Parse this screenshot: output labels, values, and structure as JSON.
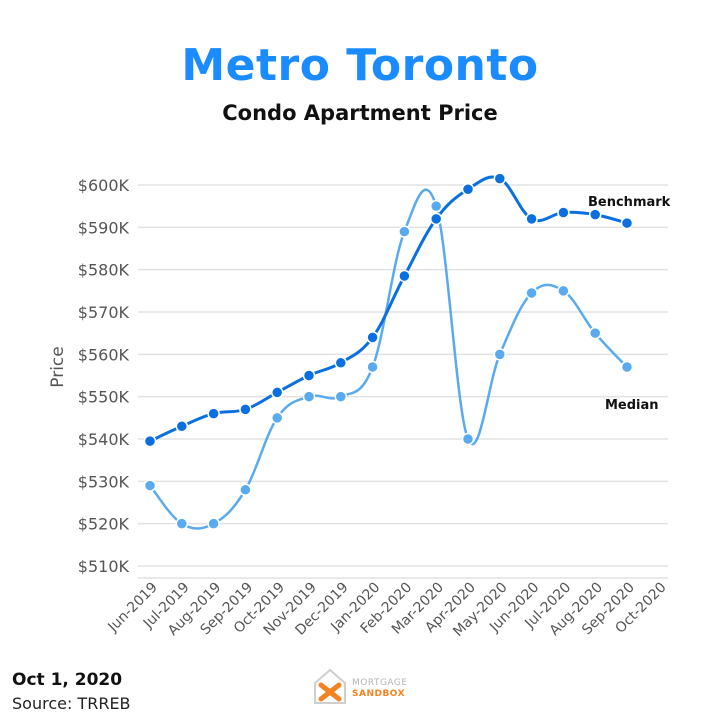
{
  "colors": {
    "title": "#1a8cff",
    "benchmark": "#0a6fe0",
    "median": "#5aaaf0",
    "grid": "#e2e2e2",
    "axis_text": "#555555",
    "logo_orange": "#f58220"
  },
  "footer": {
    "date": "Oct 1, 2020",
    "source": "Source: TRREB"
  },
  "logo": {
    "line1": "MORTGAGE",
    "line2": "SANDBOX"
  },
  "chart_data": {
    "type": "line",
    "title": "Metro Toronto",
    "subtitle": "Condo Apartment Price",
    "ylabel": "Price",
    "xlabel": "",
    "categories": [
      "Jun-2019",
      "Jul-2019",
      "Aug-2019",
      "Sep-2019",
      "Oct-2019",
      "Nov-2019",
      "Dec-2019",
      "Jan-2020",
      "Feb-2020",
      "Mar-2020",
      "Apr-2020",
      "May-2020",
      "Jun-2020",
      "Jul-2020",
      "Aug-2020",
      "Sep-2020",
      "Oct-2020"
    ],
    "y_ticks": [
      510,
      520,
      530,
      540,
      550,
      560,
      570,
      580,
      590,
      600
    ],
    "y_tick_labels": [
      "$510K",
      "$520K",
      "$530K",
      "$540K",
      "$550K",
      "$560K",
      "$570K",
      "$580K",
      "$590K",
      "$600K"
    ],
    "ylim": [
      505,
      605
    ],
    "grid": "horizontal",
    "series": [
      {
        "name": "Benchmark",
        "values": [
          539.5,
          543,
          546,
          547,
          551,
          555,
          558,
          564,
          578.5,
          592,
          599,
          601.5,
          592,
          593.5,
          593,
          591,
          null
        ]
      },
      {
        "name": "Median",
        "values": [
          529,
          520,
          520,
          528,
          545,
          550,
          550,
          557,
          589,
          595,
          540,
          560,
          574.5,
          575,
          565,
          557,
          null
        ]
      }
    ]
  }
}
